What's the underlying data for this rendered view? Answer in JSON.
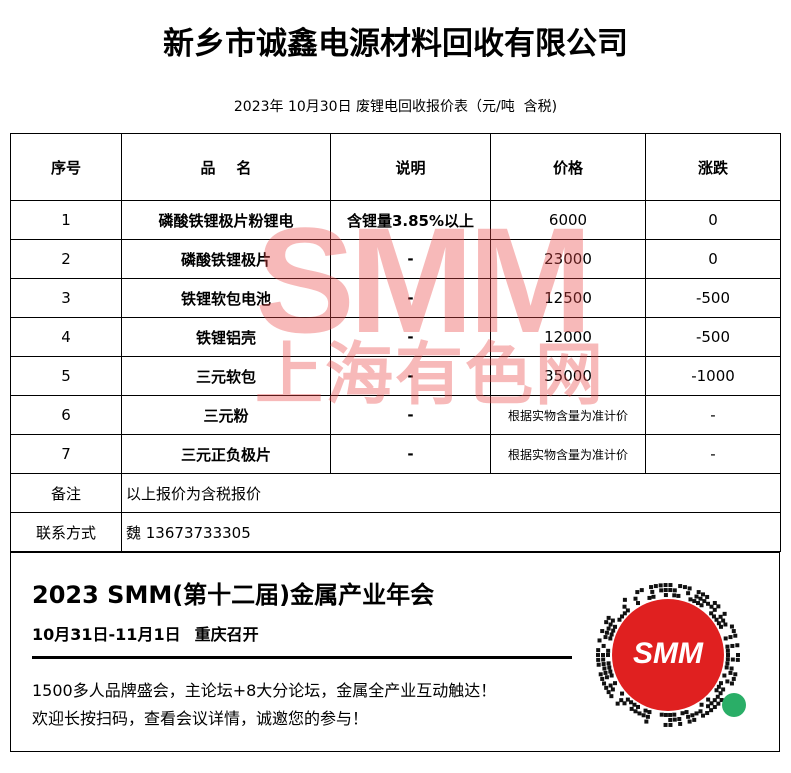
{
  "header": {
    "title": "新乡市诚鑫电源材料回收有限公司",
    "subtitle": "2023年 10月30日 废锂电回收报价表（元/吨  含税)"
  },
  "table": {
    "columns": [
      "序号",
      "品    名",
      "说明",
      "价格",
      "涨跌"
    ],
    "rows": [
      [
        1,
        "磷酸铁锂极片粉锂电",
        "含锂量3.85%以上",
        6000,
        0
      ],
      [
        2,
        "磷酸铁锂极片",
        "-",
        23000,
        0
      ],
      [
        3,
        "铁锂软包电池",
        "-",
        12500,
        -500
      ],
      [
        4,
        "铁锂铝壳",
        "-",
        12000,
        -500
      ],
      [
        5,
        "三元软包",
        "-",
        35000,
        -1000
      ],
      [
        6,
        "三元粉",
        "-",
        "根据实物含量为准计价",
        "-"
      ],
      [
        7,
        "三元正负极片",
        "-",
        "根据实物含量为准计价",
        "-"
      ]
    ],
    "remark": [
      "备注",
      "以上报价为含税报价"
    ],
    "contact": [
      "联系方式",
      "魏 13673733305"
    ]
  },
  "watermark": {
    "brand": "SMM",
    "name": "上海有色网"
  },
  "banner": {
    "title": "2023 SMM(第十二届)金属产业年会",
    "date": "10月31日-11月1日",
    "place": "重庆召开",
    "lines": [
      "1500多人品牌盛会，主论坛+8大分论坛，金属全产业互动触达！",
      "欢迎长按扫码，查看会议详情，诚邀您的参与！"
    ],
    "qr_label": "SMM"
  }
}
